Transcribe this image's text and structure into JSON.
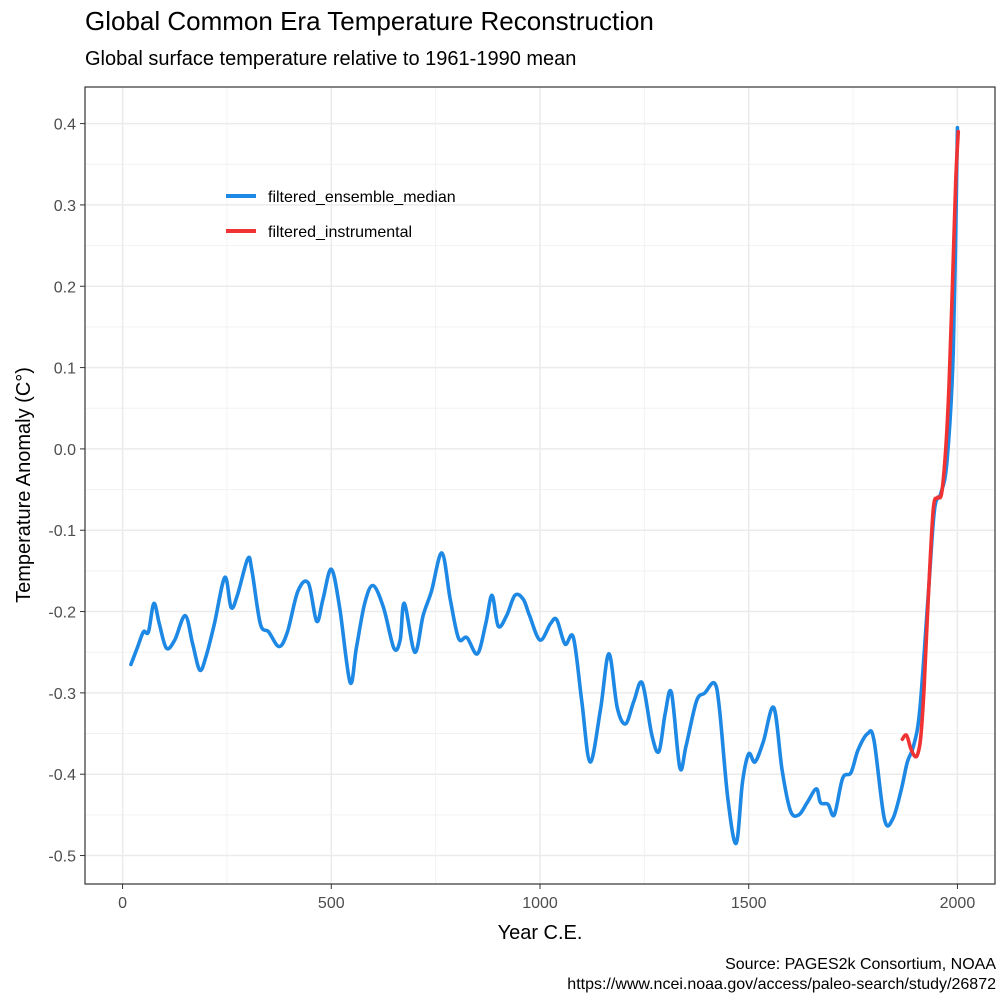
{
  "chart_data": {
    "type": "line",
    "title": "Global Common Era Temperature Reconstruction",
    "subtitle": "Global surface temperature relative to 1961-1990 mean",
    "xlabel": "Year C.E.",
    "ylabel": "Temperature Anomaly (C°)",
    "xlim": [
      -90,
      2090
    ],
    "ylim": [
      -0.535,
      0.445
    ],
    "x_ticks": [
      0,
      500,
      1000,
      1500,
      2000
    ],
    "x_tick_labels": [
      "0",
      "500",
      "1000",
      "1500",
      "2000"
    ],
    "y_ticks": [
      -0.5,
      -0.4,
      -0.3,
      -0.2,
      -0.1,
      0.0,
      0.1,
      0.2,
      0.3,
      0.4
    ],
    "y_tick_labels": [
      "-0.5",
      "-0.4",
      "-0.3",
      "-0.2",
      "-0.1",
      "0.0",
      "0.1",
      "0.2",
      "0.3",
      "0.4"
    ],
    "grid": true,
    "legend_position": "top-left inside",
    "series": [
      {
        "name": "filtered_ensemble_median",
        "color": "#1e88e5",
        "points": [
          [
            20,
            -0.265
          ],
          [
            35,
            -0.245
          ],
          [
            50,
            -0.225
          ],
          [
            62,
            -0.225
          ],
          [
            75,
            -0.19
          ],
          [
            88,
            -0.215
          ],
          [
            105,
            -0.245
          ],
          [
            125,
            -0.235
          ],
          [
            150,
            -0.205
          ],
          [
            168,
            -0.24
          ],
          [
            185,
            -0.272
          ],
          [
            200,
            -0.255
          ],
          [
            220,
            -0.215
          ],
          [
            245,
            -0.158
          ],
          [
            260,
            -0.195
          ],
          [
            275,
            -0.18
          ],
          [
            300,
            -0.135
          ],
          [
            310,
            -0.15
          ],
          [
            330,
            -0.215
          ],
          [
            350,
            -0.225
          ],
          [
            375,
            -0.243
          ],
          [
            395,
            -0.225
          ],
          [
            420,
            -0.175
          ],
          [
            445,
            -0.165
          ],
          [
            465,
            -0.212
          ],
          [
            480,
            -0.185
          ],
          [
            500,
            -0.148
          ],
          [
            520,
            -0.195
          ],
          [
            545,
            -0.287
          ],
          [
            560,
            -0.245
          ],
          [
            580,
            -0.19
          ],
          [
            600,
            -0.168
          ],
          [
            625,
            -0.195
          ],
          [
            650,
            -0.245
          ],
          [
            665,
            -0.235
          ],
          [
            675,
            -0.19
          ],
          [
            700,
            -0.25
          ],
          [
            720,
            -0.205
          ],
          [
            740,
            -0.175
          ],
          [
            765,
            -0.128
          ],
          [
            785,
            -0.185
          ],
          [
            805,
            -0.233
          ],
          [
            825,
            -0.232
          ],
          [
            850,
            -0.252
          ],
          [
            870,
            -0.215
          ],
          [
            885,
            -0.18
          ],
          [
            900,
            -0.218
          ],
          [
            920,
            -0.205
          ],
          [
            940,
            -0.18
          ],
          [
            960,
            -0.185
          ],
          [
            975,
            -0.205
          ],
          [
            1000,
            -0.235
          ],
          [
            1025,
            -0.215
          ],
          [
            1040,
            -0.21
          ],
          [
            1060,
            -0.24
          ],
          [
            1080,
            -0.232
          ],
          [
            1100,
            -0.31
          ],
          [
            1120,
            -0.385
          ],
          [
            1145,
            -0.32
          ],
          [
            1165,
            -0.252
          ],
          [
            1185,
            -0.318
          ],
          [
            1205,
            -0.338
          ],
          [
            1225,
            -0.31
          ],
          [
            1245,
            -0.288
          ],
          [
            1268,
            -0.352
          ],
          [
            1285,
            -0.372
          ],
          [
            1300,
            -0.325
          ],
          [
            1315,
            -0.3
          ],
          [
            1335,
            -0.392
          ],
          [
            1350,
            -0.365
          ],
          [
            1375,
            -0.31
          ],
          [
            1395,
            -0.3
          ],
          [
            1418,
            -0.288
          ],
          [
            1430,
            -0.32
          ],
          [
            1450,
            -0.43
          ],
          [
            1470,
            -0.485
          ],
          [
            1485,
            -0.41
          ],
          [
            1500,
            -0.375
          ],
          [
            1515,
            -0.385
          ],
          [
            1535,
            -0.36
          ],
          [
            1560,
            -0.318
          ],
          [
            1580,
            -0.395
          ],
          [
            1600,
            -0.445
          ],
          [
            1620,
            -0.45
          ],
          [
            1640,
            -0.435
          ],
          [
            1662,
            -0.418
          ],
          [
            1672,
            -0.435
          ],
          [
            1690,
            -0.437
          ],
          [
            1705,
            -0.45
          ],
          [
            1725,
            -0.405
          ],
          [
            1745,
            -0.398
          ],
          [
            1762,
            -0.37
          ],
          [
            1785,
            -0.35
          ],
          [
            1800,
            -0.358
          ],
          [
            1825,
            -0.455
          ],
          [
            1845,
            -0.455
          ],
          [
            1865,
            -0.42
          ],
          [
            1880,
            -0.385
          ],
          [
            1895,
            -0.365
          ],
          [
            1910,
            -0.32
          ],
          [
            1930,
            -0.18
          ],
          [
            1945,
            -0.075
          ],
          [
            1960,
            -0.055
          ],
          [
            1975,
            -0.015
          ],
          [
            1990,
            0.12
          ],
          [
            2000,
            0.395
          ]
        ]
      },
      {
        "name": "filtered_instrumental",
        "color": "#f03232",
        "points": [
          [
            1868,
            -0.357
          ],
          [
            1878,
            -0.352
          ],
          [
            1888,
            -0.368
          ],
          [
            1898,
            -0.378
          ],
          [
            1905,
            -0.375
          ],
          [
            1912,
            -0.355
          ],
          [
            1920,
            -0.295
          ],
          [
            1930,
            -0.185
          ],
          [
            1942,
            -0.075
          ],
          [
            1952,
            -0.06
          ],
          [
            1962,
            -0.055
          ],
          [
            1972,
            0.0
          ],
          [
            1980,
            0.08
          ],
          [
            1988,
            0.2
          ],
          [
            1996,
            0.33
          ],
          [
            2002,
            0.39
          ]
        ]
      }
    ],
    "caption": [
      "Source: PAGES2k Consortium, NOAA",
      "https://www.ncei.noaa.gov/access/paleo-search/study/26872"
    ]
  }
}
